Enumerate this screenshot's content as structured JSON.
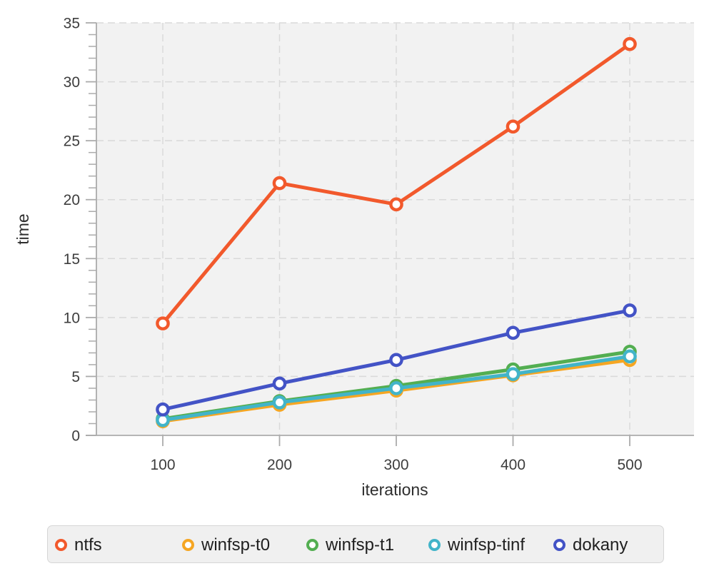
{
  "chart_data": {
    "type": "line",
    "title": "",
    "xlabel": "iterations",
    "ylabel": "time",
    "x": [
      100,
      200,
      300,
      400,
      500
    ],
    "series": [
      {
        "name": "ntfs",
        "color": "#F2592C",
        "values": [
          9.5,
          21.4,
          19.6,
          26.2,
          33.2
        ]
      },
      {
        "name": "winfsp-t0",
        "color": "#F5A623",
        "values": [
          1.2,
          2.6,
          3.8,
          5.1,
          6.4
        ]
      },
      {
        "name": "winfsp-t1",
        "color": "#53AE51",
        "values": [
          1.4,
          2.9,
          4.2,
          5.6,
          7.1
        ]
      },
      {
        "name": "winfsp-tinf",
        "color": "#42B4C9",
        "values": [
          1.3,
          2.8,
          4.0,
          5.2,
          6.7
        ]
      },
      {
        "name": "dokany",
        "color": "#4353C6",
        "values": [
          2.2,
          4.4,
          6.4,
          8.7,
          10.6
        ]
      }
    ],
    "xticks": [
      100,
      200,
      300,
      400,
      500
    ],
    "yticks": [
      0,
      5,
      10,
      15,
      20,
      25,
      30,
      35
    ],
    "ylim": [
      0,
      35
    ],
    "y_minor_tick_interval": 1,
    "grid": "dashed",
    "legend_position": "bottom",
    "marker_style": "open-circle",
    "colors": {
      "panel_bg": "#f2f2f2",
      "grid": "#d9d9d9",
      "axis": "#ababab",
      "tick_label": "#3d3d3d",
      "axis_title": "#2e2e2e",
      "legend_bg": "#f0f0f0",
      "legend_border": "#d6d6d6",
      "legend_text": "#1f1f1f"
    }
  }
}
